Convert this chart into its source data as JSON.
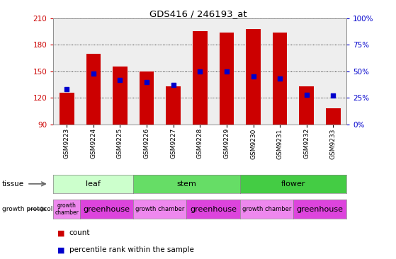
{
  "title": "GDS416 / 246193_at",
  "samples": [
    "GSM9223",
    "GSM9224",
    "GSM9225",
    "GSM9226",
    "GSM9227",
    "GSM9228",
    "GSM9229",
    "GSM9230",
    "GSM9231",
    "GSM9232",
    "GSM9233"
  ],
  "counts": [
    126,
    170,
    155,
    150,
    133,
    195,
    194,
    198,
    194,
    133,
    108
  ],
  "percentiles": [
    33,
    48,
    42,
    40,
    37,
    50,
    50,
    45,
    43,
    28,
    27
  ],
  "ymin": 90,
  "ymax": 210,
  "yticks": [
    90,
    120,
    150,
    180,
    210
  ],
  "right_yticks": [
    0,
    25,
    50,
    75,
    100
  ],
  "bar_color": "#cc0000",
  "dot_color": "#0000cc",
  "tissue_groups": [
    {
      "label": "leaf",
      "start": 0,
      "end": 3,
      "color": "#ccffcc"
    },
    {
      "label": "stem",
      "start": 3,
      "end": 7,
      "color": "#66dd66"
    },
    {
      "label": "flower",
      "start": 7,
      "end": 11,
      "color": "#44cc44"
    }
  ],
  "protocol_groups": [
    {
      "label": "growth\nchamber",
      "start": 0,
      "end": 1,
      "color": "#ee88ee",
      "fontsize": 5.5
    },
    {
      "label": "greenhouse",
      "start": 1,
      "end": 3,
      "color": "#dd44dd",
      "fontsize": 8
    },
    {
      "label": "growth chamber",
      "start": 3,
      "end": 5,
      "color": "#ee88ee",
      "fontsize": 6
    },
    {
      "label": "greenhouse",
      "start": 5,
      "end": 7,
      "color": "#dd44dd",
      "fontsize": 8
    },
    {
      "label": "growth chamber",
      "start": 7,
      "end": 9,
      "color": "#ee88ee",
      "fontsize": 6
    },
    {
      "label": "greenhouse",
      "start": 9,
      "end": 11,
      "color": "#dd44dd",
      "fontsize": 8
    }
  ],
  "tissue_label": "tissue",
  "protocol_label": "growth protocol",
  "legend_count_label": "count",
  "legend_pct_label": "percentile rank within the sample",
  "left_axis_color": "#cc0000",
  "right_axis_color": "#0000cc",
  "bg_color": "#ffffff",
  "plot_bg_color": "#eeeeee"
}
